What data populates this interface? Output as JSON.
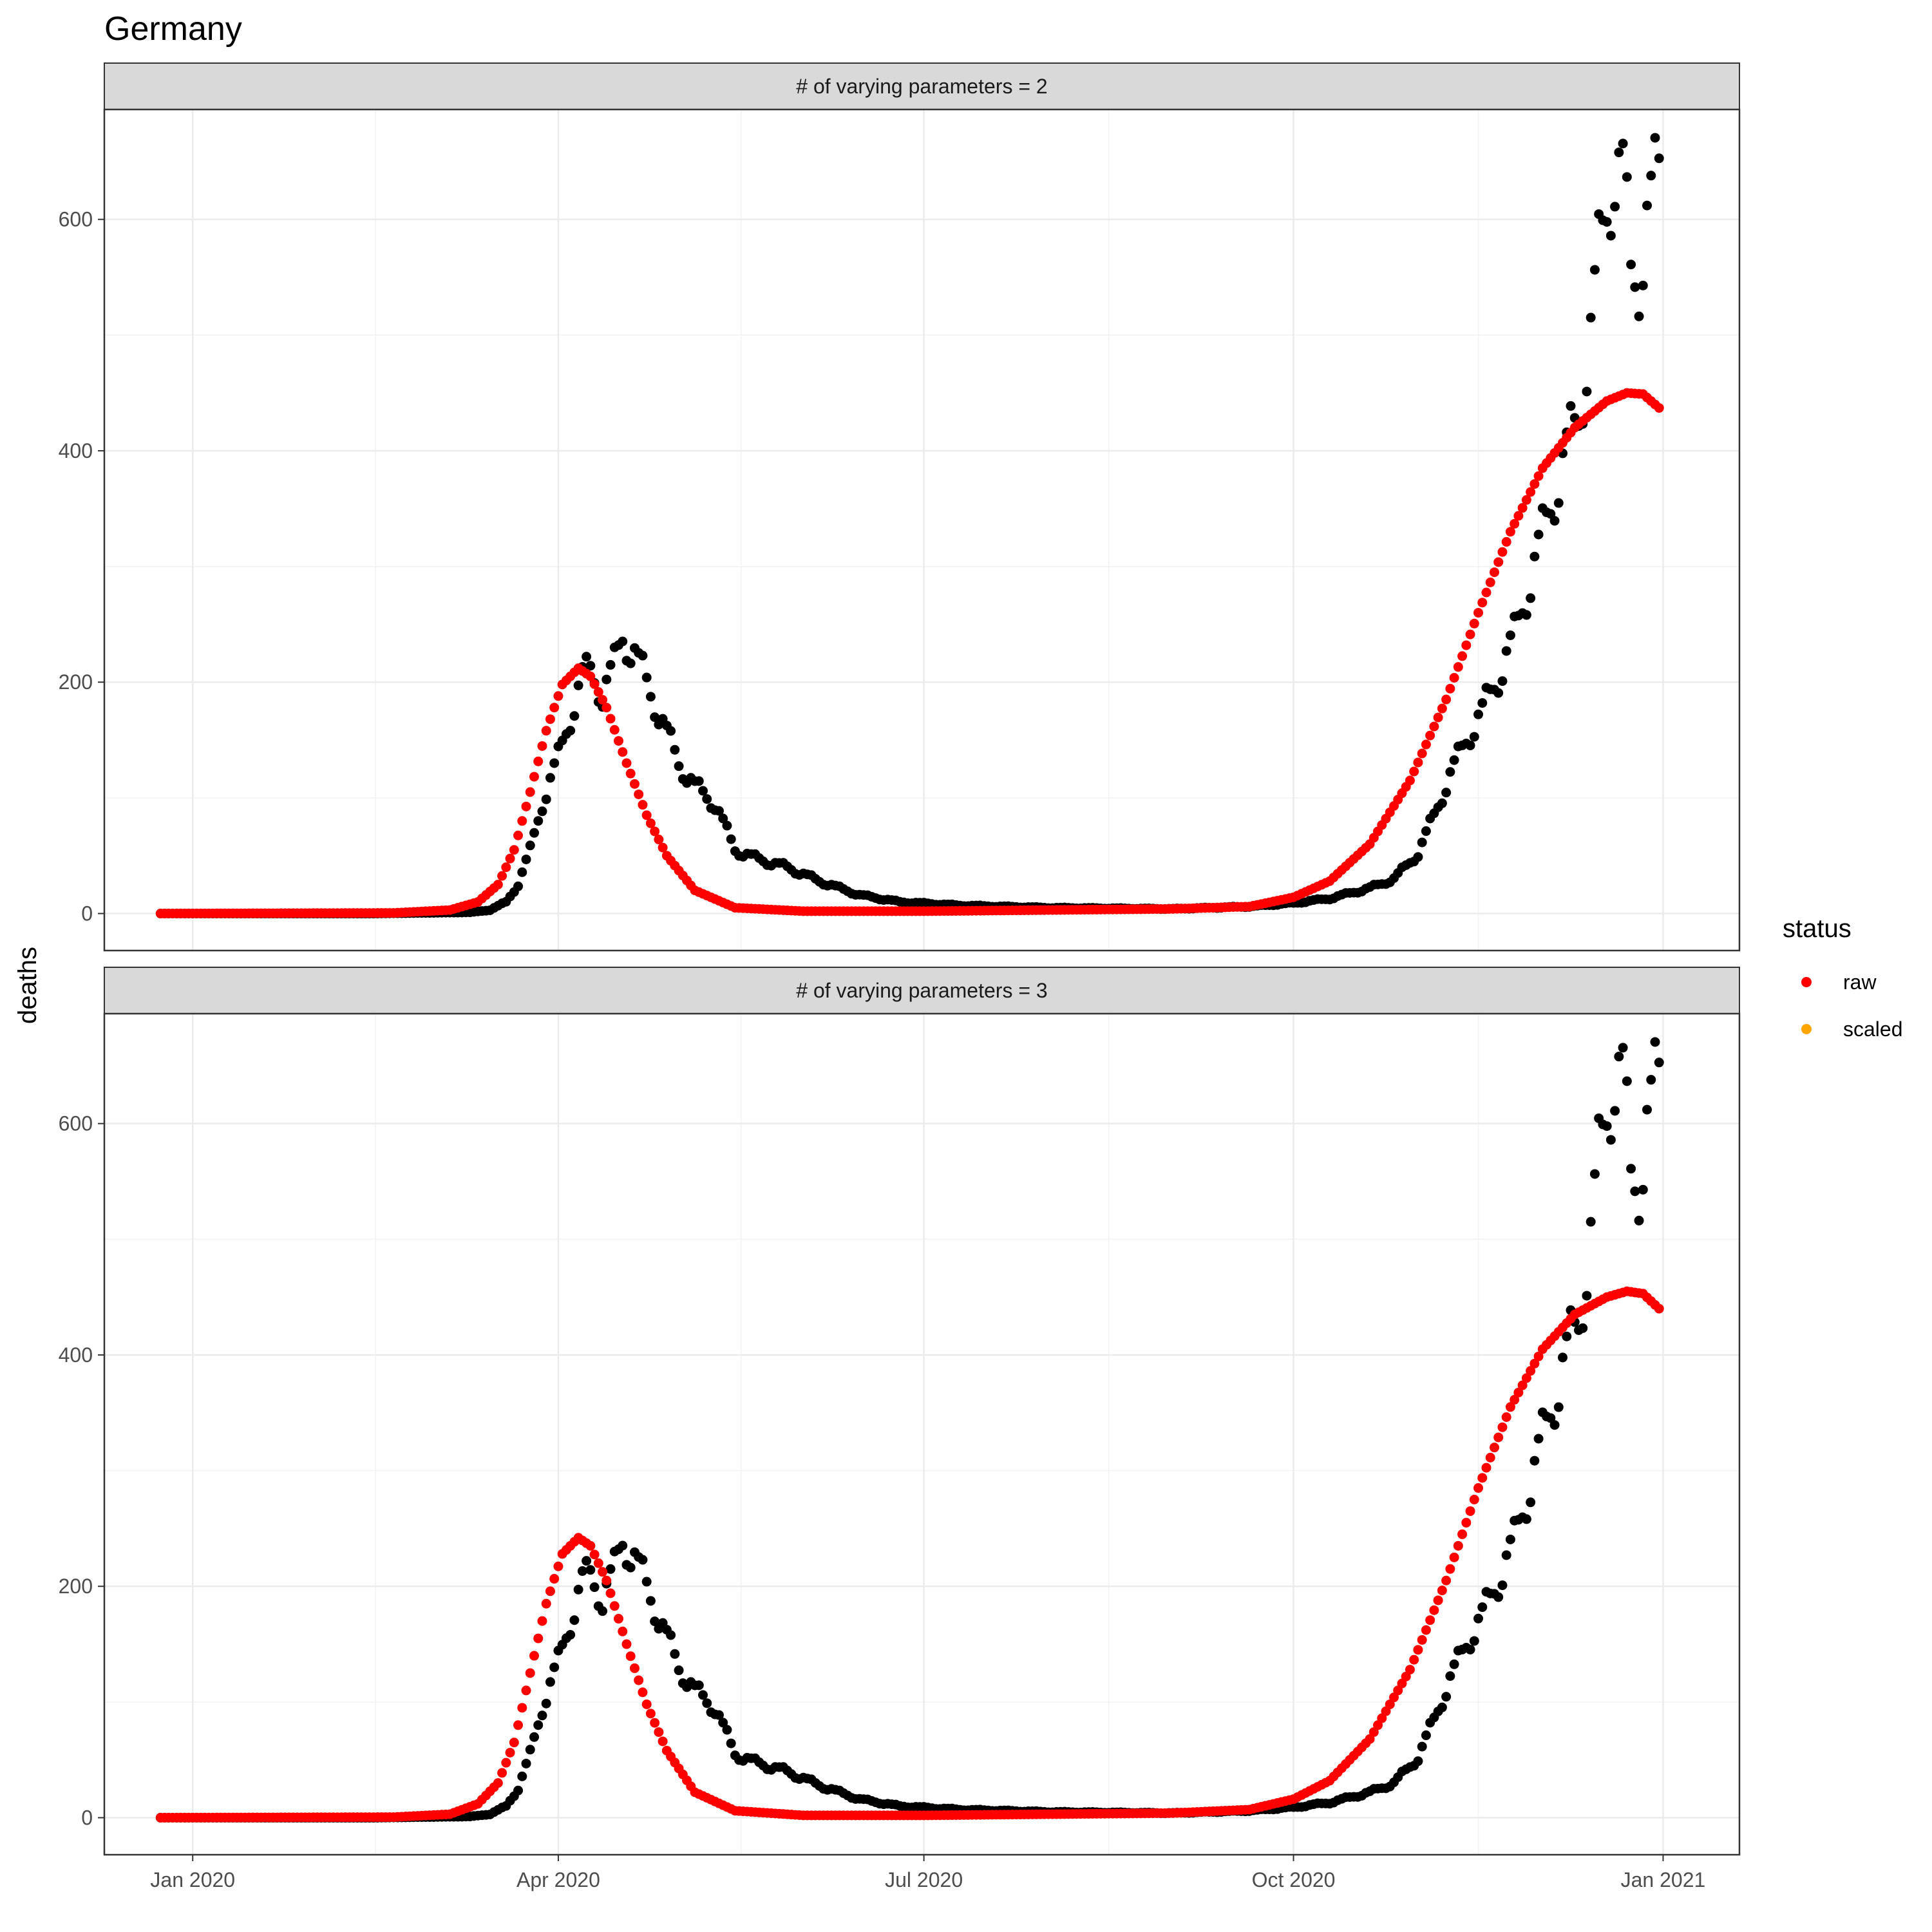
{
  "chart_data": {
    "type": "scatter",
    "title": "Germany",
    "xlabel": "",
    "ylabel": "deaths",
    "x_axis_type": "date",
    "xlim": [
      "2019-12-10",
      "2021-01-20"
    ],
    "ylim": [
      -32,
      695
    ],
    "x_ticks": [
      {
        "date": "2020-01-01",
        "label": "Jan 2020"
      },
      {
        "date": "2020-04-01",
        "label": "Apr 2020"
      },
      {
        "date": "2020-07-01",
        "label": "Jul 2020"
      },
      {
        "date": "2020-10-01",
        "label": "Oct 2020"
      },
      {
        "date": "2021-01-01",
        "label": "Jan 2021"
      }
    ],
    "y_ticks": [
      0,
      200,
      400,
      600
    ],
    "grid": true,
    "observed_color": "#000000",
    "legend": {
      "title": "status",
      "position": "right",
      "entries": [
        {
          "label": "raw",
          "color": "#ff0000"
        },
        {
          "label": "scaled",
          "color": "#ffa500"
        }
      ]
    },
    "series_start": "2019-12-24",
    "series_end": "2020-12-31",
    "observed_knots": [
      [
        "2019-12-24",
        0
      ],
      [
        "2020-02-15",
        0
      ],
      [
        "2020-03-10",
        1
      ],
      [
        "2020-03-15",
        3
      ],
      [
        "2020-03-19",
        10
      ],
      [
        "2020-03-22",
        25
      ],
      [
        "2020-03-25",
        55
      ],
      [
        "2020-03-28",
        95
      ],
      [
        "2020-04-01",
        135
      ],
      [
        "2020-04-04",
        170
      ],
      [
        "2020-04-07",
        205
      ],
      [
        "2020-04-09",
        210
      ],
      [
        "2020-04-12",
        190
      ],
      [
        "2020-04-15",
        215
      ],
      [
        "2020-04-17",
        240
      ],
      [
        "2020-04-20",
        225
      ],
      [
        "2020-04-23",
        200
      ],
      [
        "2020-04-27",
        165
      ],
      [
        "2020-05-01",
        130
      ],
      [
        "2020-05-05",
        110
      ],
      [
        "2020-05-10",
        95
      ],
      [
        "2020-05-15",
        55
      ],
      [
        "2020-05-20",
        48
      ],
      [
        "2020-05-28",
        40
      ],
      [
        "2020-06-05",
        28
      ],
      [
        "2020-06-15",
        16
      ],
      [
        "2020-06-25",
        10
      ],
      [
        "2020-07-10",
        7
      ],
      [
        "2020-08-01",
        5
      ],
      [
        "2020-09-01",
        4
      ],
      [
        "2020-09-20",
        6
      ],
      [
        "2020-10-01",
        9
      ],
      [
        "2020-10-10",
        13
      ],
      [
        "2020-10-20",
        22
      ],
      [
        "2020-10-26",
        30
      ],
      [
        "2020-11-01",
        52
      ],
      [
        "2020-11-05",
        85
      ],
      [
        "2020-11-09",
        120
      ],
      [
        "2020-11-13",
        150
      ],
      [
        "2020-11-17",
        175
      ],
      [
        "2020-11-21",
        205
      ],
      [
        "2020-11-25",
        240
      ],
      [
        "2020-11-29",
        290
      ],
      [
        "2020-12-03",
        340
      ],
      [
        "2020-12-07",
        390
      ],
      [
        "2020-12-11",
        430
      ],
      [
        "2020-12-14",
        505
      ],
      [
        "2020-12-16",
        565
      ],
      [
        "2020-12-18",
        610
      ],
      [
        "2020-12-20",
        650
      ],
      [
        "2020-12-22",
        640
      ],
      [
        "2020-12-24",
        550
      ],
      [
        "2020-12-26",
        555
      ],
      [
        "2020-12-28",
        600
      ],
      [
        "2020-12-31",
        640
      ]
    ],
    "panels": [
      {
        "label": "# of varying parameters = 2",
        "model": {
          "color": "#ff0000",
          "knots": [
            [
              "2019-12-24",
              0
            ],
            [
              "2020-02-20",
              0.5
            ],
            [
              "2020-03-05",
              3
            ],
            [
              "2020-03-12",
              10
            ],
            [
              "2020-03-17",
              25
            ],
            [
              "2020-03-21",
              55
            ],
            [
              "2020-03-25",
              105
            ],
            [
              "2020-03-29",
              158
            ],
            [
              "2020-04-02",
              198
            ],
            [
              "2020-04-06",
              212
            ],
            [
              "2020-04-09",
              205
            ],
            [
              "2020-04-13",
              178
            ],
            [
              "2020-04-18",
              130
            ],
            [
              "2020-04-23",
              85
            ],
            [
              "2020-04-28",
              50
            ],
            [
              "2020-05-05",
              20
            ],
            [
              "2020-05-15",
              5
            ],
            [
              "2020-06-01",
              2
            ],
            [
              "2020-07-01",
              2
            ],
            [
              "2020-08-01",
              3
            ],
            [
              "2020-09-01",
              4
            ],
            [
              "2020-09-20",
              6
            ],
            [
              "2020-10-01",
              14
            ],
            [
              "2020-10-10",
              28
            ],
            [
              "2020-10-20",
              60
            ],
            [
              "2020-10-30",
              115
            ],
            [
              "2020-11-08",
              185
            ],
            [
              "2020-11-16",
              260
            ],
            [
              "2020-11-24",
              330
            ],
            [
              "2020-12-02",
              385
            ],
            [
              "2020-12-10",
              420
            ],
            [
              "2020-12-18",
              443
            ],
            [
              "2020-12-23",
              450
            ],
            [
              "2020-12-27",
              449
            ],
            [
              "2020-12-31",
              437
            ]
          ]
        }
      },
      {
        "label": "# of varying parameters = 3",
        "model": {
          "color": "#ff0000",
          "knots": [
            [
              "2019-12-24",
              0
            ],
            [
              "2020-02-20",
              0.5
            ],
            [
              "2020-03-05",
              3
            ],
            [
              "2020-03-12",
              12
            ],
            [
              "2020-03-17",
              30
            ],
            [
              "2020-03-21",
              65
            ],
            [
              "2020-03-25",
              125
            ],
            [
              "2020-03-29",
              185
            ],
            [
              "2020-04-02",
              228
            ],
            [
              "2020-04-06",
              242
            ],
            [
              "2020-04-09",
              235
            ],
            [
              "2020-04-13",
              205
            ],
            [
              "2020-04-18",
              150
            ],
            [
              "2020-04-23",
              98
            ],
            [
              "2020-04-28",
              58
            ],
            [
              "2020-05-05",
              22
            ],
            [
              "2020-05-15",
              6
            ],
            [
              "2020-06-01",
              2
            ],
            [
              "2020-07-01",
              2
            ],
            [
              "2020-08-01",
              3
            ],
            [
              "2020-09-01",
              4
            ],
            [
              "2020-09-20",
              7
            ],
            [
              "2020-10-01",
              16
            ],
            [
              "2020-10-10",
              32
            ],
            [
              "2020-10-20",
              68
            ],
            [
              "2020-10-30",
              128
            ],
            [
              "2020-11-08",
              205
            ],
            [
              "2020-11-16",
              285
            ],
            [
              "2020-11-24",
              355
            ],
            [
              "2020-12-02",
              405
            ],
            [
              "2020-12-10",
              435
            ],
            [
              "2020-12-18",
              450
            ],
            [
              "2020-12-23",
              455
            ],
            [
              "2020-12-27",
              453
            ],
            [
              "2020-12-31",
              440
            ]
          ]
        }
      }
    ]
  }
}
